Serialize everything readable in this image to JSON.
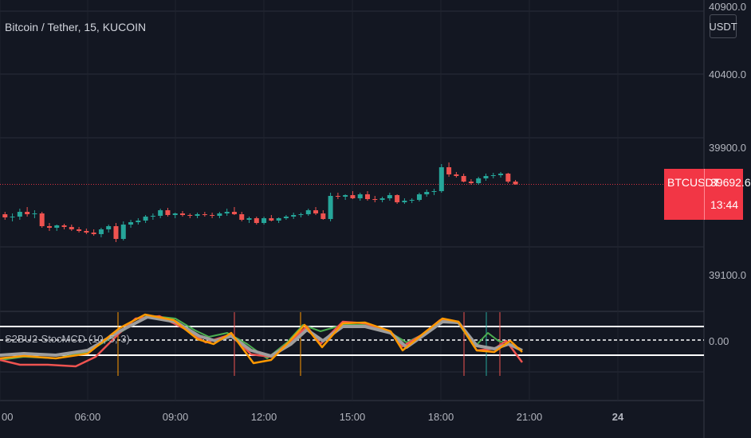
{
  "header": {
    "title": "Bitcoin / Tether, 15, KUCOIN",
    "unit_button": "USDT"
  },
  "price_axis": {
    "labels": [
      "40900.0",
      "40400.0",
      "39900.0",
      "39100.0"
    ],
    "indicator_zero": "0.00"
  },
  "last_price": {
    "symbol": "BTCUSDT",
    "value": "39692.6",
    "countdown": "13:44"
  },
  "indicator": {
    "label": "S2BU2-StocMCD (10, 5, 3)"
  },
  "time_axis": {
    "labels": [
      "00",
      "06:00",
      "09:00",
      "12:00",
      "15:00",
      "18:00",
      "21:00",
      "24"
    ]
  },
  "colors": {
    "background": "#131722",
    "up": "#26a69a",
    "down": "#ef5350",
    "last_price": "#f23645",
    "k_line": "#ff9800",
    "d_line": "#9e9e9e",
    "green_line": "#4caf50",
    "red_line": "#ef5350"
  },
  "chart_data": {
    "type": "candlestick",
    "symbol": "BTCUSDT",
    "interval": "15",
    "candles": [
      [
        39500,
        39530,
        39475,
        39505
      ],
      [
        39505,
        39520,
        39470,
        39485
      ],
      [
        39485,
        39510,
        39460,
        39490
      ],
      [
        39490,
        39540,
        39470,
        39520
      ],
      [
        39520,
        39550,
        39490,
        39505
      ],
      [
        39505,
        39530,
        39480,
        39510
      ],
      [
        39510,
        39520,
        39420,
        39430
      ],
      [
        39430,
        39450,
        39400,
        39420
      ],
      [
        39420,
        39440,
        39400,
        39435
      ],
      [
        39435,
        39445,
        39410,
        39425
      ],
      [
        39425,
        39440,
        39400,
        39410
      ],
      [
        39410,
        39425,
        39390,
        39400
      ],
      [
        39400,
        39415,
        39380,
        39390
      ],
      [
        39390,
        39410,
        39370,
        39380
      ],
      [
        39380,
        39420,
        39360,
        39410
      ],
      [
        39410,
        39440,
        39390,
        39430
      ],
      [
        39430,
        39450,
        39330,
        39350
      ],
      [
        39350,
        39460,
        39340,
        39440
      ],
      [
        39440,
        39470,
        39420,
        39455
      ],
      [
        39455,
        39480,
        39440,
        39465
      ],
      [
        39465,
        39500,
        39450,
        39490
      ],
      [
        39490,
        39510,
        39470,
        39495
      ],
      [
        39495,
        39540,
        39480,
        39530
      ],
      [
        39530,
        39545,
        39490,
        39500
      ],
      [
        39500,
        39515,
        39480,
        39510
      ],
      [
        39510,
        39525,
        39490,
        39500
      ],
      [
        39500,
        39510,
        39480,
        39495
      ],
      [
        39495,
        39515,
        39480,
        39505
      ],
      [
        39505,
        39520,
        39490,
        39500
      ],
      [
        39500,
        39515,
        39480,
        39495
      ],
      [
        39495,
        39520,
        39480,
        39510
      ],
      [
        39510,
        39540,
        39495,
        39520
      ],
      [
        39520,
        39550,
        39500,
        39505
      ],
      [
        39505,
        39520,
        39460,
        39470
      ],
      [
        39470,
        39490,
        39450,
        39480
      ],
      [
        39480,
        39490,
        39440,
        39450
      ],
      [
        39450,
        39490,
        39440,
        39480
      ],
      [
        39480,
        39500,
        39460,
        39465
      ],
      [
        39465,
        39485,
        39450,
        39480
      ],
      [
        39480,
        39500,
        39470,
        39490
      ],
      [
        39490,
        39515,
        39475,
        39500
      ],
      [
        39500,
        39515,
        39485,
        39505
      ],
      [
        39505,
        39540,
        39495,
        39530
      ],
      [
        39530,
        39550,
        39500,
        39510
      ],
      [
        39510,
        39530,
        39470,
        39475
      ],
      [
        39475,
        39640,
        39460,
        39620
      ],
      [
        39620,
        39640,
        39600,
        39615
      ],
      [
        39615,
        39630,
        39595,
        39625
      ],
      [
        39625,
        39650,
        39600,
        39605
      ],
      [
        39605,
        39640,
        39590,
        39630
      ],
      [
        39630,
        39650,
        39590,
        39600
      ],
      [
        39600,
        39620,
        39580,
        39595
      ],
      [
        39595,
        39615,
        39580,
        39605
      ],
      [
        39605,
        39640,
        39590,
        39625
      ],
      [
        39625,
        39630,
        39570,
        39580
      ],
      [
        39580,
        39605,
        39570,
        39590
      ],
      [
        39590,
        39605,
        39575,
        39595
      ],
      [
        39595,
        39640,
        39585,
        39630
      ],
      [
        39630,
        39660,
        39615,
        39645
      ],
      [
        39645,
        39665,
        39625,
        39650
      ],
      [
        39650,
        39820,
        39640,
        39800
      ],
      [
        39800,
        39830,
        39740,
        39755
      ],
      [
        39755,
        39770,
        39735,
        39745
      ],
      [
        39745,
        39760,
        39705,
        39710
      ],
      [
        39710,
        39725,
        39690,
        39700
      ],
      [
        39700,
        39740,
        39690,
        39730
      ],
      [
        39730,
        39760,
        39715,
        39745
      ],
      [
        39745,
        39765,
        39730,
        39750
      ],
      [
        39750,
        39770,
        39735,
        39760
      ],
      [
        39760,
        39765,
        39700,
        39710
      ],
      [
        39710,
        39720,
        39690,
        39692.6
      ]
    ]
  }
}
